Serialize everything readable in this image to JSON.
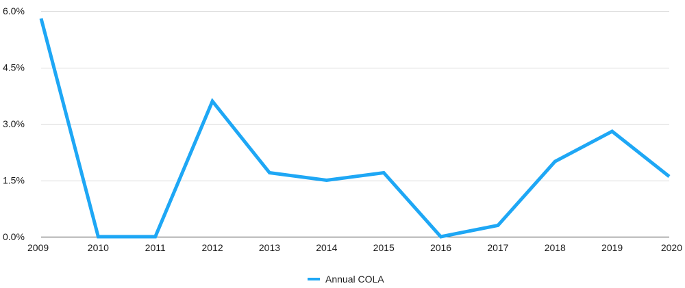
{
  "chart_data": {
    "type": "line",
    "title": "",
    "xlabel": "",
    "ylabel": "",
    "categories": [
      "2009",
      "2010",
      "2011",
      "2012",
      "2013",
      "2014",
      "2015",
      "2016",
      "2017",
      "2018",
      "2019",
      "2020"
    ],
    "series": [
      {
        "name": "Annual COLA",
        "color": "#1ea7f5",
        "values": [
          5.8,
          0.0,
          0.0,
          3.6,
          1.7,
          1.5,
          1.7,
          0.0,
          0.3,
          2.0,
          2.8,
          1.6
        ]
      }
    ],
    "ylim": [
      0,
      6
    ],
    "yticks": [
      0,
      1.5,
      3,
      4.5,
      6
    ],
    "ytick_labels": [
      "0.0%",
      "1.5%",
      "3.0%",
      "4.5%",
      "6.0%"
    ],
    "grid": true,
    "legend_position": "bottom"
  }
}
